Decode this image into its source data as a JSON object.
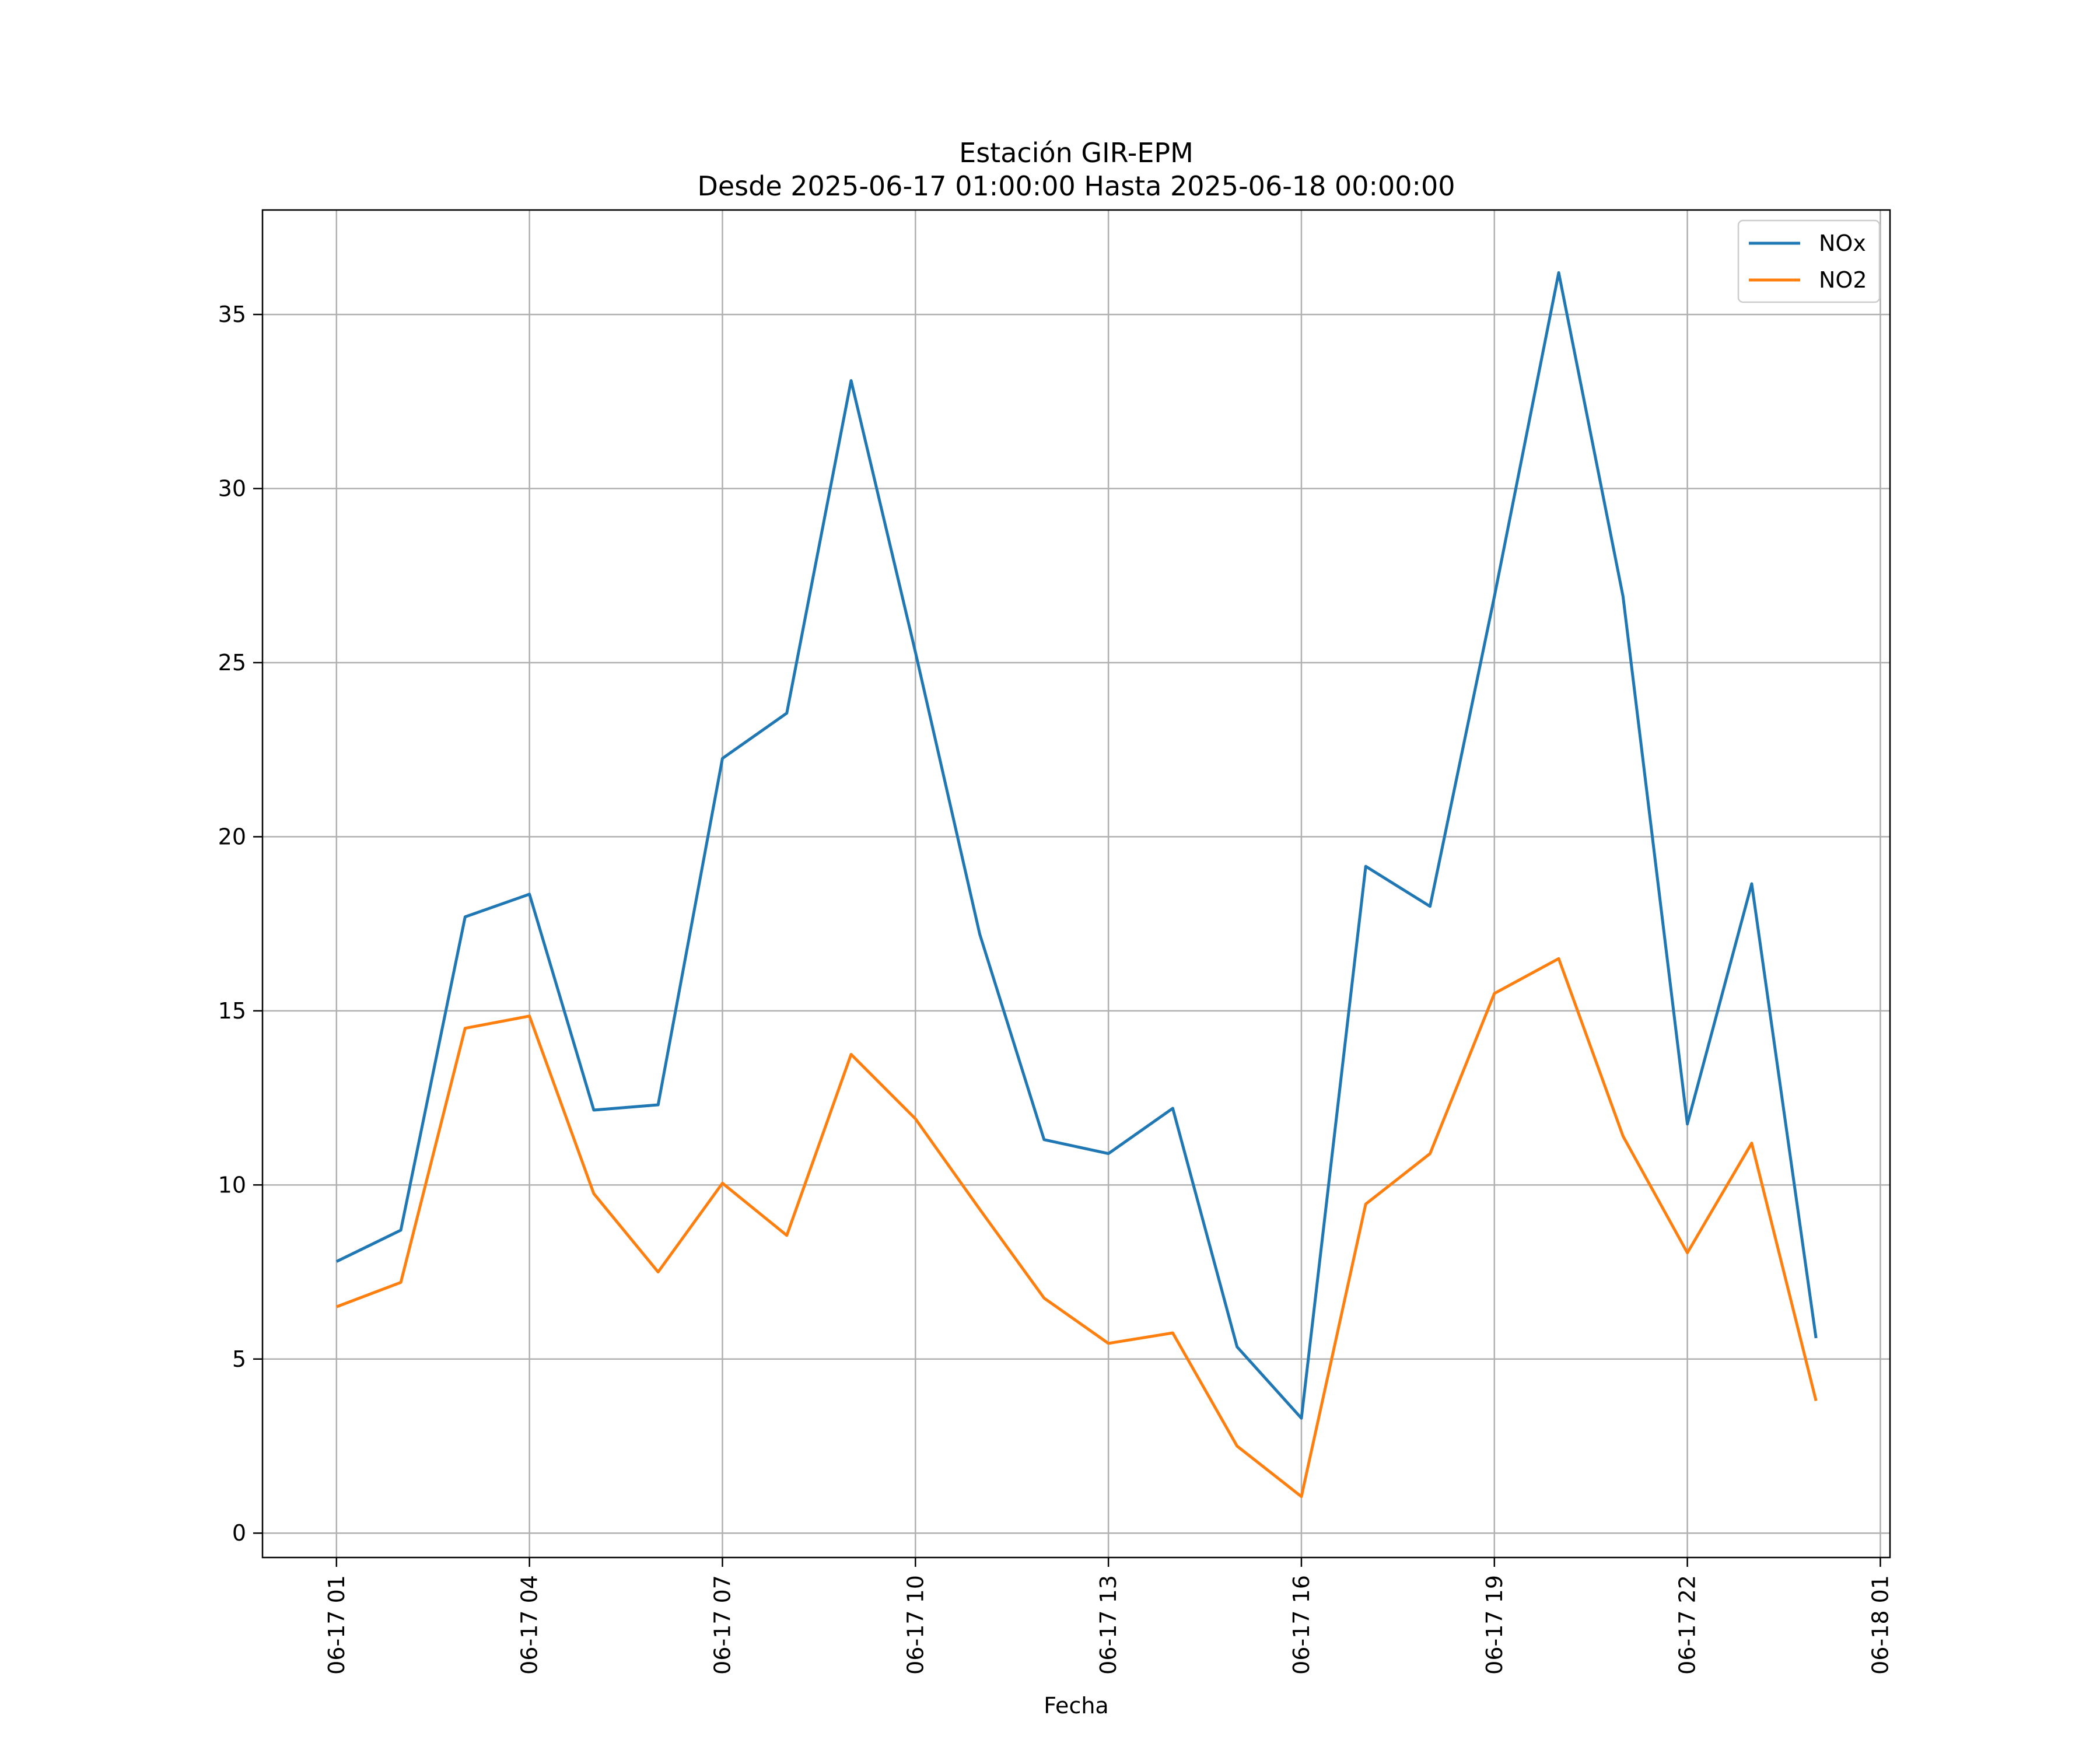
{
  "chart_data": {
    "type": "line",
    "title": "Estación GIR-EPM",
    "subtitle": "Desde 2025-06-17 01:00:00 Hasta 2025-06-18 00:00:00",
    "xlabel": "Fecha",
    "ylabel": "",
    "x": [
      "2025-06-17 01:00",
      "2025-06-17 02:00",
      "2025-06-17 03:00",
      "2025-06-17 04:00",
      "2025-06-17 05:00",
      "2025-06-17 06:00",
      "2025-06-17 07:00",
      "2025-06-17 08:00",
      "2025-06-17 09:00",
      "2025-06-17 10:00",
      "2025-06-17 11:00",
      "2025-06-17 12:00",
      "2025-06-17 13:00",
      "2025-06-17 14:00",
      "2025-06-17 15:00",
      "2025-06-17 16:00",
      "2025-06-17 17:00",
      "2025-06-17 18:00",
      "2025-06-17 19:00",
      "2025-06-17 20:00",
      "2025-06-17 21:00",
      "2025-06-17 22:00",
      "2025-06-17 23:00",
      "2025-06-18 00:00"
    ],
    "series": [
      {
        "name": "NOx",
        "color": "#1f77b4",
        "values": [
          7.8,
          8.7,
          17.7,
          18.35,
          12.15,
          12.3,
          22.25,
          23.55,
          33.1,
          25.3,
          17.2,
          11.3,
          10.9,
          12.2,
          5.35,
          3.3,
          19.15,
          18.0,
          26.9,
          36.2,
          26.9,
          11.75,
          18.65,
          5.6
        ]
      },
      {
        "name": "NO2",
        "color": "#ff7f0e",
        "values": [
          6.5,
          7.2,
          14.5,
          14.85,
          9.75,
          7.5,
          10.05,
          8.55,
          13.75,
          11.9,
          9.3,
          6.75,
          5.45,
          5.75,
          2.5,
          1.05,
          9.45,
          10.9,
          15.5,
          16.5,
          11.4,
          8.05,
          11.2,
          3.8
        ]
      }
    ],
    "x_ticks": [
      "06-17 01",
      "06-17 04",
      "06-17 07",
      "06-17 10",
      "06-17 13",
      "06-17 16",
      "06-17 19",
      "06-17 22",
      "06-18 01"
    ],
    "y_ticks": [
      0,
      5,
      10,
      15,
      20,
      25,
      30,
      35
    ],
    "xlim": [
      "2025-06-16 23:51",
      "2025-06-18 01:09"
    ],
    "ylim": [
      -0.7,
      38.0
    ],
    "grid": true,
    "legend_position": "top-right"
  }
}
